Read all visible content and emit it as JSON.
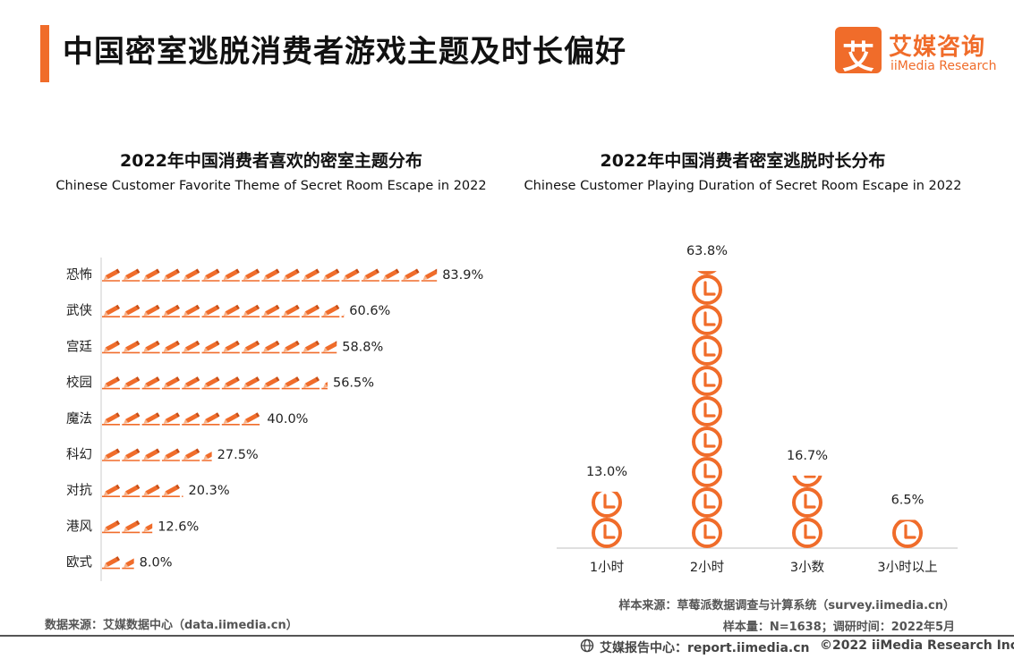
{
  "page": {
    "title": "中国密室逃脱消费者游戏主题及时长偏好",
    "logo_glyph": "艾",
    "logo_cn": "艾媒咨询",
    "logo_en": "iiMedia Research"
  },
  "colors": {
    "accent": "#f06c2a",
    "text": "#222222",
    "axis": "#cccccc"
  },
  "chart_data": [
    {
      "type": "bar",
      "orientation": "horizontal",
      "title": "2022年中国消费者喜欢的密室主题分布",
      "subtitle": "Chinese Customer Favorite Theme of Secret Room Escape in 2022",
      "categories": [
        "恐怖",
        "武侠",
        "宫廷",
        "校园",
        "魔法",
        "科幻",
        "对抗",
        "港风",
        "欧式"
      ],
      "values": [
        83.9,
        60.6,
        58.8,
        56.5,
        40.0,
        27.5,
        20.3,
        12.6,
        8.0
      ],
      "labels": [
        "83.9%",
        "60.6%",
        "58.8%",
        "56.5%",
        "40.0%",
        "27.5%",
        "20.3%",
        "12.6%",
        "8.0%"
      ],
      "unit": "%",
      "xlim": [
        0,
        100
      ],
      "mark_icon": "pencil-icon",
      "mark_unit": 5
    },
    {
      "type": "bar",
      "orientation": "vertical",
      "title": "2022年中国消费者密室逃脱时长分布",
      "subtitle": "Chinese Customer Playing Duration of Secret Room Escape in 2022",
      "categories": [
        "1小时",
        "2小时",
        "3小数",
        "3小时以上"
      ],
      "values": [
        13.0,
        63.8,
        16.7,
        6.5
      ],
      "labels": [
        "13.0%",
        "63.8%",
        "16.7%",
        "6.5%"
      ],
      "unit": "%",
      "ylim": [
        0,
        100
      ],
      "mark_icon": "clock-icon",
      "mark_unit": 7
    }
  ],
  "footer": {
    "source_left": "数据来源：艾媒数据中心（data.iimedia.cn）",
    "source_right1": "样本来源：草莓派数据调查与计算系统（survey.iimedia.cn）",
    "source_right2": "样本量：N=1638；调研时间：2022年5月",
    "report_center": "艾媒报告中心：report.iimedia.cn",
    "copyright": "©2022  iiMedia Research  Inc"
  }
}
